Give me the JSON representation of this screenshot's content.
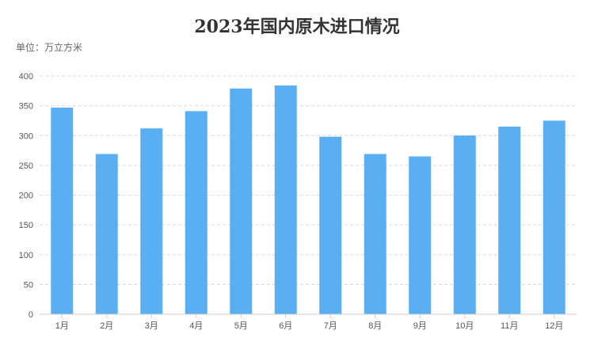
{
  "chart_data": {
    "type": "bar",
    "title": "2023年国内原木进口情况",
    "unit_label": "单位：万立方米",
    "categories": [
      "1月",
      "2月",
      "3月",
      "4月",
      "5月",
      "6月",
      "7月",
      "8月",
      "9月",
      "10月",
      "11月",
      "12月"
    ],
    "values": [
      347,
      269,
      312,
      341,
      379,
      384,
      298,
      269,
      265,
      300,
      315,
      325
    ],
    "ylim": [
      0,
      400
    ],
    "yticks": [
      0,
      50,
      100,
      150,
      200,
      250,
      300,
      350,
      400
    ],
    "grid": true,
    "legend": "none",
    "colors": {
      "bar": "#5aaef2",
      "grid": "#d9d9d9",
      "axis": "#cccccc"
    }
  }
}
